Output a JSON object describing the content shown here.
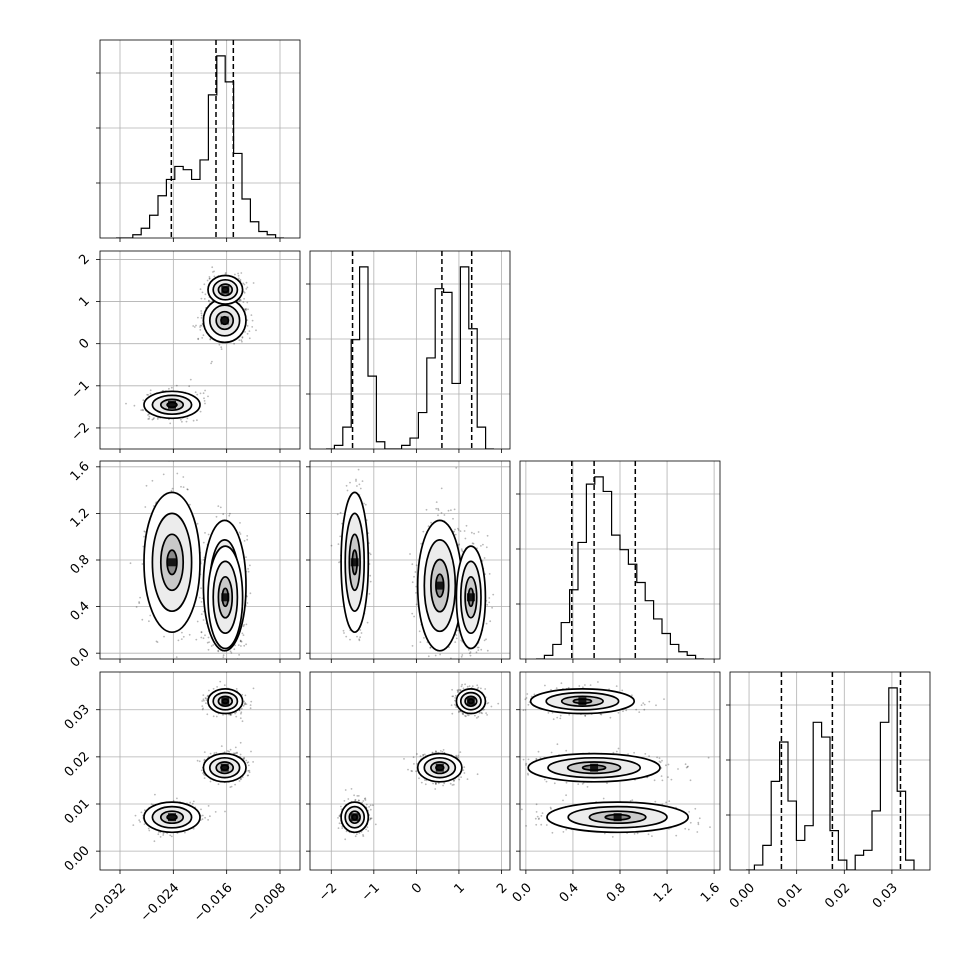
{
  "chart_data": {
    "type": "corner",
    "grid": true,
    "parameters": [
      {
        "range": [
          -0.035,
          -0.005
        ],
        "ticks": [
          -0.032,
          -0.024,
          -0.016,
          -0.008
        ],
        "tick_labels": [
          "−0.032",
          "−0.024",
          "−0.016",
          "−0.008"
        ],
        "quantiles": [
          -0.0243,
          -0.0176,
          -0.015
        ],
        "histogram": [
          0,
          0,
          1,
          3,
          7,
          13,
          18,
          22,
          21,
          18,
          24,
          44,
          56,
          48,
          26,
          12,
          5,
          2,
          1,
          0
        ]
      },
      {
        "range": [
          -2.5,
          2.2
        ],
        "ticks": [
          -2,
          -1,
          0,
          1,
          2
        ],
        "tick_labels": [
          "−2",
          "−1",
          "0",
          "1",
          "2"
        ],
        "quantiles": [
          -1.5,
          0.6,
          1.3
        ],
        "histogram": [
          0,
          1,
          6,
          30,
          50,
          20,
          2,
          0,
          0,
          1,
          3,
          10,
          25,
          44,
          43,
          18,
          50,
          33,
          6,
          0
        ]
      },
      {
        "range": [
          -0.05,
          1.65
        ],
        "ticks": [
          0.0,
          0.4,
          0.8,
          1.2,
          1.6
        ],
        "tick_labels": [
          "0.0",
          "0.4",
          "0.8",
          "1.2",
          "1.6"
        ],
        "quantiles": [
          0.39,
          0.58,
          0.93
        ],
        "histogram": [
          0,
          1,
          4,
          10,
          19,
          32,
          48,
          50,
          46,
          34,
          30,
          26,
          21,
          16,
          11,
          7,
          4,
          2,
          1,
          0
        ]
      },
      {
        "range": [
          -0.004,
          0.038
        ],
        "ticks": [
          0.0,
          0.01,
          0.02,
          0.03
        ],
        "tick_labels": [
          "0.00",
          "0.01",
          "0.02",
          "0.03"
        ],
        "quantiles": [
          0.0068,
          0.0175,
          0.0318
        ],
        "histogram": [
          0,
          1,
          5,
          18,
          26,
          14,
          6,
          9,
          30,
          27,
          8,
          2,
          0,
          3,
          4,
          12,
          30,
          37,
          16,
          2
        ]
      }
    ],
    "clusters": [
      {
        "center": [
          -0.0242,
          -1.45,
          0.78,
          0.0072
        ],
        "sd": [
          0.0021,
          0.16,
          0.3,
          0.0016
        ]
      },
      {
        "center": [
          -0.0163,
          0.55,
          0.58,
          0.0177
        ],
        "sd": [
          0.0016,
          0.26,
          0.28,
          0.0015
        ]
      },
      {
        "center": [
          -0.0162,
          1.28,
          0.48,
          0.0318
        ],
        "sd": [
          0.0013,
          0.17,
          0.22,
          0.0013
        ]
      }
    ]
  }
}
